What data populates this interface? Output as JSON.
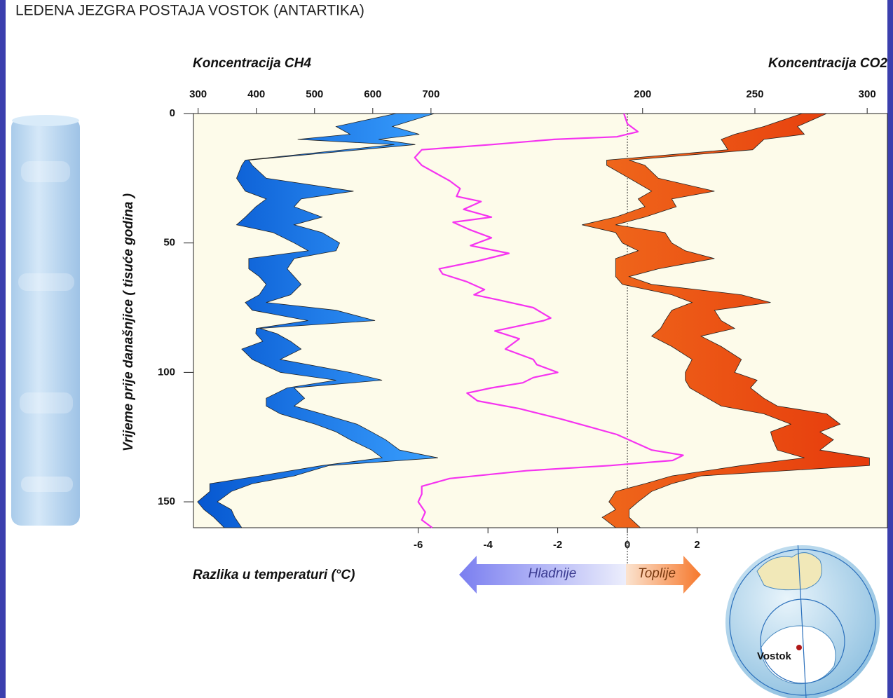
{
  "chart_data": {
    "type": "vertical-profile",
    "title": "LEDENA JEZGRA POSTAJA VOSTOK (ANTARTIKA)",
    "ylabel": "Vrijeme prije današnjice ( tisuće godina )",
    "ylim": [
      0,
      160
    ],
    "yticks": [
      0,
      50,
      100,
      150
    ],
    "ch4_axis": {
      "title": "Koncentracija CH4",
      "position": "top",
      "xlim": [
        292,
        1484
      ],
      "xticks": [
        300,
        400,
        500,
        600,
        700
      ]
    },
    "co2_axis": {
      "title": "Koncentracija CO2",
      "position": "top",
      "xlim": [
        0,
        309
      ],
      "xticks": [
        200,
        250,
        300
      ]
    },
    "temp_axis": {
      "title": "Razlika u temperaturi (°C)",
      "position": "bottom",
      "xlim": [
        -12.45,
        7.46
      ],
      "xticks": [
        -6,
        -4,
        -2,
        0,
        2
      ]
    },
    "annotations": {
      "colder": "Hladnije",
      "warmer": "Toplije",
      "station": "Vostok"
    },
    "series": [
      {
        "type": "band",
        "axis": "ch4_axis",
        "color": "#1474e6",
        "time": [
          0,
          5,
          8,
          10,
          12,
          18,
          20,
          25,
          30,
          33,
          36,
          40,
          43,
          46,
          50,
          53,
          56,
          60,
          63,
          66,
          70,
          73,
          76,
          80,
          83,
          85,
          88,
          91,
          95,
          100,
          103,
          106,
          110,
          113,
          116,
          120,
          123,
          126,
          130,
          133,
          136,
          140,
          143,
          146,
          150,
          153,
          156,
          160
        ],
        "low": [
          640,
          537,
          561,
          471,
          637,
          381,
          375,
          366,
          381,
          417,
          399,
          381,
          366,
          429,
          465,
          489,
          387,
          387,
          405,
          417,
          405,
          381,
          393,
          489,
          400,
          399,
          411,
          375,
          393,
          441,
          537,
          453,
          417,
          417,
          441,
          501,
          537,
          561,
          598,
          616,
          513,
          405,
          320,
          320,
          299,
          310,
          327,
          345
        ],
        "high": [
          706,
          634,
          680,
          610,
          673,
          387,
          393,
          417,
          567,
          477,
          465,
          513,
          465,
          513,
          543,
          537,
          465,
          453,
          465,
          477,
          459,
          417,
          537,
          604,
          406,
          435,
          459,
          477,
          441,
          561,
          616,
          465,
          483,
          465,
          513,
          573,
          598,
          622,
          646,
          712,
          525,
          465,
          393,
          357,
          333,
          357,
          363,
          375
        ]
      },
      {
        "type": "band",
        "axis": "co2_axis",
        "color": "#ee5516",
        "time": [
          0,
          5,
          8,
          10,
          14,
          18,
          20,
          25,
          30,
          33,
          36,
          40,
          43,
          46,
          50,
          53,
          56,
          60,
          63,
          66,
          70,
          73,
          76,
          80,
          83,
          86,
          90,
          95,
          100,
          103,
          106,
          110,
          113,
          116,
          120,
          123,
          126,
          130,
          133,
          136,
          140,
          143,
          146,
          150,
          153,
          156,
          160
        ],
        "low": [
          271,
          254,
          241,
          235,
          238,
          184,
          184,
          194,
          204,
          198,
          201,
          188,
          173,
          188,
          191,
          198,
          188,
          188,
          188,
          191,
          213,
          222,
          213,
          210,
          208,
          204,
          213,
          222,
          219,
          219,
          221,
          229,
          235,
          254,
          266,
          257,
          258,
          260,
          272,
          244,
          213,
          201,
          188,
          185,
          188,
          182,
          188
        ],
        "high": [
          282,
          269,
          272,
          254,
          249,
          194,
          201,
          207,
          232,
          213,
          215,
          201,
          188,
          210,
          213,
          219,
          232,
          207,
          194,
          204,
          244,
          257,
          232,
          235,
          241,
          226,
          235,
          244,
          241,
          251,
          248,
          254,
          260,
          282,
          288,
          279,
          285,
          279,
          301,
          301,
          226,
          213,
          204,
          198,
          194,
          194,
          199
        ]
      },
      {
        "type": "line",
        "axis": "temp_axis",
        "color": "#f533f0",
        "time": [
          0,
          4,
          7,
          9,
          10,
          12,
          14,
          17,
          20,
          23,
          26,
          29,
          32,
          34,
          37,
          40,
          42,
          45,
          48,
          51,
          54,
          57,
          60,
          62,
          65,
          68,
          70,
          72,
          75,
          79,
          80,
          84,
          87,
          91,
          95,
          97,
          100,
          102,
          104,
          106,
          108,
          111,
          114,
          118,
          121,
          124,
          127,
          130,
          132,
          134,
          136,
          138,
          141,
          144,
          147,
          150,
          154,
          157,
          160
        ],
        "values": [
          -0.1,
          0,
          0.3,
          -0.3,
          -2.1,
          -3.9,
          -5.9,
          -6.1,
          -5.9,
          -5.5,
          -5.1,
          -4.8,
          -4.9,
          -4.2,
          -4.7,
          -3.9,
          -5.0,
          -4.5,
          -3.9,
          -4.5,
          -3.4,
          -4.3,
          -5.4,
          -5.3,
          -4.6,
          -4.1,
          -4.4,
          -3.7,
          -2.7,
          -2.2,
          -2.4,
          -3.8,
          -3.1,
          -3.5,
          -2.7,
          -2.6,
          -2.0,
          -2.7,
          -3.0,
          -3.9,
          -4.6,
          -4.3,
          -3.1,
          -1.9,
          -1.1,
          -0.3,
          0.2,
          0.7,
          1.6,
          1.3,
          -0.5,
          -2.9,
          -5.1,
          -5.9,
          -5.9,
          -6.0,
          -5.8,
          -5.9,
          -5.6
        ]
      }
    ]
  }
}
